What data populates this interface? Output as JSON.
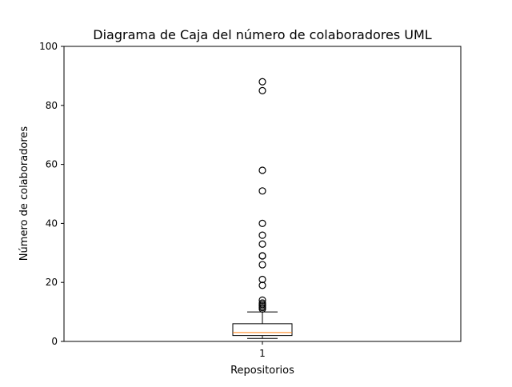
{
  "chart_data": {
    "type": "box",
    "title": "Diagrama de Caja del número de colaboradores UML",
    "xlabel": "Repositorios",
    "ylabel": "Número de colaboradores",
    "ylim": [
      0,
      100
    ],
    "yticks": [
      0,
      20,
      40,
      60,
      80,
      100
    ],
    "categories": [
      "1"
    ],
    "series": [
      {
        "stats": {
          "whisker_low": 1,
          "q1": 2,
          "median": 3,
          "q3": 6,
          "whisker_high": 10
        },
        "outliers": [
          11,
          11.5,
          12,
          12.5,
          13,
          14,
          19,
          21,
          26,
          29,
          29,
          33,
          36,
          40,
          51,
          58,
          85,
          88
        ]
      }
    ],
    "colors": {
      "box": "#000000",
      "median": "#ff7f0e",
      "outlier": "#000000"
    },
    "grid": false,
    "legend": "none"
  }
}
